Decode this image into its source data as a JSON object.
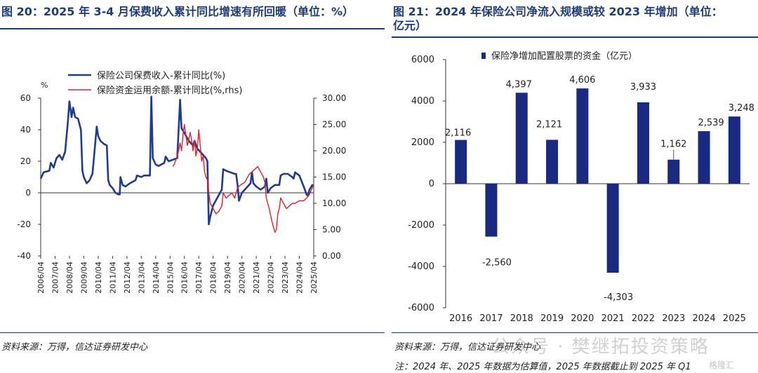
{
  "left": {
    "title": "图 20：2025 年 3-4 月保费收入累计同比增速有所回暖（单位：%）",
    "source": "资料来源：万得，信达证券研发中心"
  },
  "right": {
    "title_line1": "图 21：2024 年保险公司净流入规模或较 2023 年增加（单位：",
    "title_line2": "亿元）",
    "source": "资料来源：万得，信达证券研发中心",
    "note": "注：2024 年、2025 年数据为估算值，2025 年数据截止到 2025 年 Q1"
  },
  "watermark": {
    "text": "公众号 · 樊继拓投资策略",
    "small": "格隆汇"
  },
  "chart_data": [
    {
      "type": "line",
      "y_left_unit": "%",
      "ylim_left": [
        -40,
        60
      ],
      "ylim_right": [
        0,
        30
      ],
      "y_left_ticks": [
        "60",
        "40",
        "20",
        "0",
        "-20",
        "-40"
      ],
      "y_right_ticks": [
        "30.00",
        "25.00",
        "20.00",
        "15.00",
        "10.00",
        "5.00",
        "0.00"
      ],
      "x_ticks": [
        "2006/04",
        "2007/04",
        "2008/04",
        "2009/04",
        "2010/04",
        "2011/04",
        "2012/04",
        "2013/04",
        "2014/04",
        "2015/04",
        "2016/04",
        "2017/04",
        "2018/04",
        "2019/04",
        "2020/04",
        "2021/04",
        "2022/04",
        "2023/04",
        "2024/04",
        "2025/04"
      ],
      "colors": {
        "premium": "#1f3c8f",
        "funds": "#e8202a"
      },
      "series": [
        {
          "name": "保险公司保费收入-累计同比(%)",
          "axis": "left",
          "points": [
            [
              2006.3,
              9
            ],
            [
              2006.5,
              13
            ],
            [
              2006.9,
              14
            ],
            [
              2007.0,
              19
            ],
            [
              2007.2,
              16
            ],
            [
              2007.4,
              22
            ],
            [
              2007.6,
              24
            ],
            [
              2007.8,
              21
            ],
            [
              2008.0,
              26
            ],
            [
              2008.2,
              46
            ],
            [
              2008.3,
              58
            ],
            [
              2008.45,
              48
            ],
            [
              2008.55,
              54
            ],
            [
              2008.7,
              48
            ],
            [
              2008.9,
              47
            ],
            [
              2009.1,
              40
            ],
            [
              2009.2,
              14
            ],
            [
              2009.3,
              10
            ],
            [
              2009.5,
              6
            ],
            [
              2009.7,
              8
            ],
            [
              2009.9,
              12
            ],
            [
              2010.0,
              22
            ],
            [
              2010.2,
              42
            ],
            [
              2010.3,
              36
            ],
            [
              2010.45,
              33
            ],
            [
              2010.7,
              31
            ],
            [
              2010.9,
              30
            ],
            [
              2011.0,
              8
            ],
            [
              2011.1,
              5
            ],
            [
              2011.3,
              3
            ],
            [
              2011.5,
              0
            ],
            [
              2011.7,
              -1
            ],
            [
              2011.8,
              -1
            ],
            [
              2011.85,
              10
            ],
            [
              2012.0,
              5
            ],
            [
              2012.2,
              4
            ],
            [
              2012.5,
              6
            ],
            [
              2012.7,
              7
            ],
            [
              2012.9,
              8
            ],
            [
              2013.0,
              11
            ],
            [
              2013.3,
              10
            ],
            [
              2013.5,
              11
            ],
            [
              2013.7,
              11
            ],
            [
              2013.9,
              11
            ],
            [
              2014.0,
              61
            ],
            [
              2014.1,
              22
            ],
            [
              2014.3,
              18
            ],
            [
              2014.5,
              17
            ],
            [
              2014.7,
              18
            ],
            [
              2014.9,
              19
            ],
            [
              2015.0,
              23
            ],
            [
              2015.2,
              20
            ],
            [
              2015.5,
              21
            ],
            [
              2015.8,
              22
            ],
            [
              2016.0,
              59
            ],
            [
              2016.1,
              41
            ],
            [
              2016.3,
              38
            ],
            [
              2016.6,
              33
            ],
            [
              2016.9,
              30
            ],
            [
              2017.0,
              33
            ],
            [
              2017.2,
              28
            ],
            [
              2017.5,
              25
            ],
            [
              2017.8,
              22
            ],
            [
              2017.9,
              20
            ],
            [
              2018.0,
              -20
            ],
            [
              2018.1,
              -15
            ],
            [
              2018.3,
              -8
            ],
            [
              2018.6,
              -3
            ],
            [
              2018.9,
              2
            ],
            [
              2019.0,
              15
            ],
            [
              2019.2,
              14
            ],
            [
              2019.5,
              13
            ],
            [
              2019.8,
              12
            ],
            [
              2019.9,
              12
            ],
            [
              2020.0,
              5
            ],
            [
              2020.1,
              -5
            ],
            [
              2020.3,
              0
            ],
            [
              2020.6,
              3
            ],
            [
              2020.8,
              5
            ],
            [
              2020.9,
              6
            ],
            [
              2021.0,
              13
            ],
            [
              2021.1,
              6
            ],
            [
              2021.3,
              4
            ],
            [
              2021.6,
              2
            ],
            [
              2021.9,
              4
            ],
            [
              2022.0,
              9
            ],
            [
              2022.1,
              0
            ],
            [
              2022.3,
              3
            ],
            [
              2022.6,
              5
            ],
            [
              2022.9,
              5
            ],
            [
              2023.0,
              11
            ],
            [
              2023.2,
              12
            ],
            [
              2023.5,
              12
            ],
            [
              2023.8,
              10
            ],
            [
              2023.9,
              9
            ],
            [
              2024.0,
              13
            ],
            [
              2024.3,
              11
            ],
            [
              2024.6,
              4
            ],
            [
              2024.8,
              -1
            ],
            [
              2024.9,
              -2
            ],
            [
              2025.0,
              2
            ],
            [
              2025.2,
              5
            ],
            [
              2025.3,
              4
            ]
          ]
        },
        {
          "name": "保险资金运用余额-累计同比(%,rhs)",
          "axis": "right",
          "points": [
            [
              2015.5,
              17
            ],
            [
              2015.6,
              17.5
            ],
            [
              2015.8,
              19
            ],
            [
              2015.9,
              20
            ],
            [
              2016.0,
              21.5
            ],
            [
              2016.1,
              20
            ],
            [
              2016.2,
              23
            ],
            [
              2016.3,
              25
            ],
            [
              2016.4,
              23
            ],
            [
              2016.5,
              21
            ],
            [
              2016.6,
              22
            ],
            [
              2016.7,
              23.5
            ],
            [
              2016.8,
              22
            ],
            [
              2016.9,
              20
            ],
            [
              2017.0,
              22
            ],
            [
              2017.1,
              19
            ],
            [
              2017.2,
              20.5
            ],
            [
              2017.3,
              24
            ],
            [
              2017.4,
              21
            ],
            [
              2017.5,
              18
            ],
            [
              2017.6,
              19
            ],
            [
              2017.7,
              16
            ],
            [
              2017.8,
              15
            ],
            [
              2017.9,
              14.5
            ],
            [
              2018.0,
              12
            ],
            [
              2018.1,
              10
            ],
            [
              2018.3,
              9
            ],
            [
              2018.5,
              8
            ],
            [
              2018.7,
              8.5
            ],
            [
              2018.9,
              9.5
            ],
            [
              2019.0,
              12
            ],
            [
              2019.2,
              11
            ],
            [
              2019.4,
              11.5
            ],
            [
              2019.6,
              12
            ],
            [
              2019.8,
              11
            ],
            [
              2019.9,
              12
            ],
            [
              2020.0,
              13
            ],
            [
              2020.2,
              13.5
            ],
            [
              2020.5,
              14
            ],
            [
              2020.8,
              15.5
            ],
            [
              2021.0,
              16
            ],
            [
              2021.2,
              16.5
            ],
            [
              2021.4,
              17
            ],
            [
              2021.6,
              16
            ],
            [
              2021.8,
              15
            ],
            [
              2021.9,
              14
            ],
            [
              2022.0,
              11
            ],
            [
              2022.2,
              9
            ],
            [
              2022.4,
              6.5
            ],
            [
              2022.6,
              4.5
            ],
            [
              2022.7,
              5
            ],
            [
              2022.8,
              8
            ],
            [
              2022.9,
              9
            ],
            [
              2023.0,
              11
            ],
            [
              2023.2,
              10
            ],
            [
              2023.4,
              9
            ],
            [
              2023.6,
              9.5
            ],
            [
              2023.8,
              10
            ],
            [
              2023.9,
              10
            ],
            [
              2024.0,
              10
            ],
            [
              2024.3,
              10.5
            ],
            [
              2024.6,
              10.5
            ],
            [
              2024.8,
              11
            ],
            [
              2024.95,
              11.5
            ],
            [
              2025.05,
              12
            ],
            [
              2025.2,
              13
            ],
            [
              2025.3,
              13.5
            ]
          ]
        }
      ]
    },
    {
      "type": "bar",
      "legend": "保险净增加配置股票的资金（亿元）",
      "color": "#1a2a80",
      "ylim": [
        -6000,
        6000
      ],
      "y_ticks": [
        "6000",
        "4000",
        "2000",
        "0",
        "-2000",
        "-4000",
        "-6000"
      ],
      "categories": [
        "2016",
        "2017",
        "2018",
        "2019",
        "2020",
        "2021",
        "2022",
        "2023",
        "2024",
        "2025"
      ],
      "values": [
        2116,
        -2560,
        4397,
        2121,
        4606,
        -4303,
        3933,
        1162,
        2539,
        3248
      ],
      "labels": [
        "2,116",
        "-2,560",
        "4,397",
        "2,121",
        "4,606",
        "-4,303",
        "3,933",
        "1,162",
        "2,539",
        "3,248"
      ]
    }
  ]
}
